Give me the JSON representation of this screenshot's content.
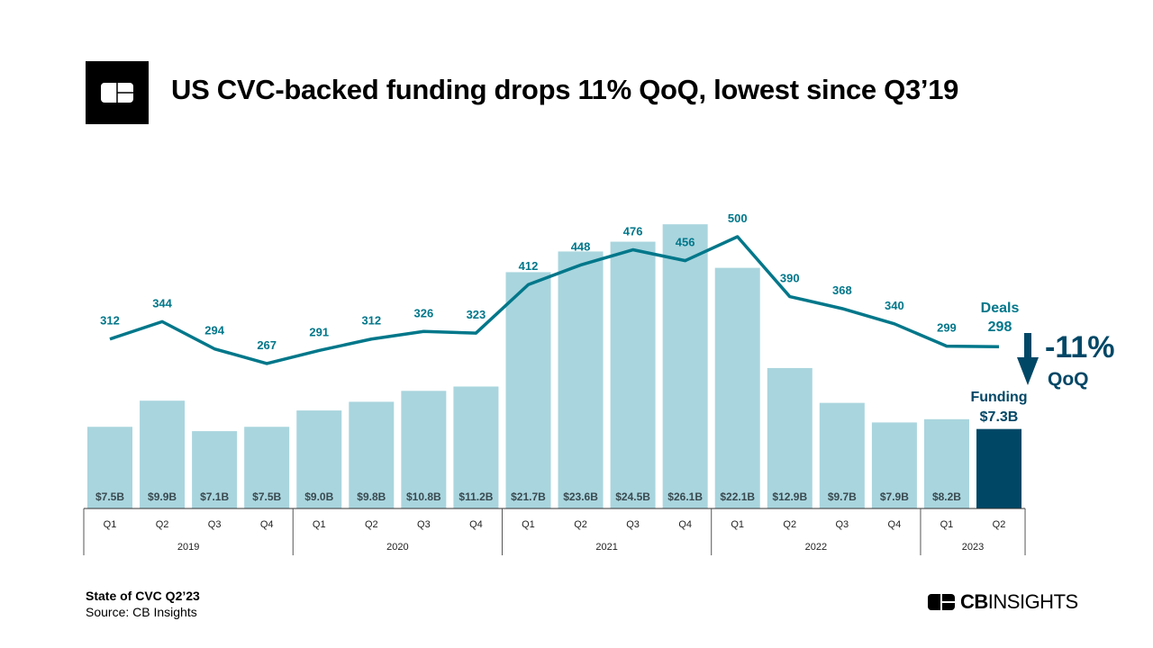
{
  "header": {
    "title": "US CVC-backed funding drops 11% QoQ, lowest since Q3’19",
    "logo": "CB"
  },
  "footer": {
    "report": "State of CVC Q2’23",
    "source": "Source: CB Insights",
    "brand_bold": "CB",
    "brand_rest": "INSIGHTS"
  },
  "colors": {
    "bar": "#a9d5de",
    "bar_highlight": "#004766",
    "line": "#00778a",
    "deal_label": "#00778a",
    "funding_label": "#3a4a50",
    "callout": "#004766"
  },
  "chart_data": {
    "type": "bar+line",
    "title": "US CVC-backed funding drops 11% QoQ, lowest since Q3’19",
    "categories": [
      "Q1",
      "Q2",
      "Q3",
      "Q4",
      "Q1",
      "Q2",
      "Q3",
      "Q4",
      "Q1",
      "Q2",
      "Q3",
      "Q4",
      "Q1",
      "Q2",
      "Q3",
      "Q4",
      "Q1",
      "Q2"
    ],
    "years": [
      {
        "label": "2019",
        "count": 4
      },
      {
        "label": "2020",
        "count": 4
      },
      {
        "label": "2021",
        "count": 4
      },
      {
        "label": "2022",
        "count": 4
      },
      {
        "label": "2023",
        "count": 2
      }
    ],
    "series": [
      {
        "name": "Funding",
        "type": "bar",
        "unit": "$B",
        "values": [
          7.5,
          9.9,
          7.1,
          7.5,
          9.0,
          9.8,
          10.8,
          11.2,
          21.7,
          23.6,
          24.5,
          26.1,
          22.1,
          12.9,
          9.7,
          7.9,
          8.2,
          7.3
        ],
        "labels": [
          "$7.5B",
          "$9.9B",
          "$7.1B",
          "$7.5B",
          "$9.0B",
          "$9.8B",
          "$10.8B",
          "$11.2B",
          "$21.7B",
          "$23.6B",
          "$24.5B",
          "$26.1B",
          "$22.1B",
          "$12.9B",
          "$9.7B",
          "$7.9B",
          "$8.2B",
          ""
        ]
      },
      {
        "name": "Deals",
        "type": "line",
        "values": [
          312,
          344,
          294,
          267,
          291,
          312,
          326,
          323,
          412,
          448,
          476,
          456,
          500,
          390,
          368,
          340,
          299,
          298
        ],
        "labels": [
          "312",
          "344",
          "294",
          "267",
          "291",
          "312",
          "326",
          "323",
          "412",
          "448",
          "476",
          "456",
          "500",
          "390",
          "368",
          "340",
          "299",
          ""
        ]
      }
    ],
    "annotations": {
      "deals_label": "Deals",
      "deals_value": "298",
      "funding_label": "Funding",
      "funding_value": "$7.3B",
      "change": "-11%",
      "change_period": "QoQ",
      "arrow": "down-arrow-icon"
    },
    "grid": false
  }
}
